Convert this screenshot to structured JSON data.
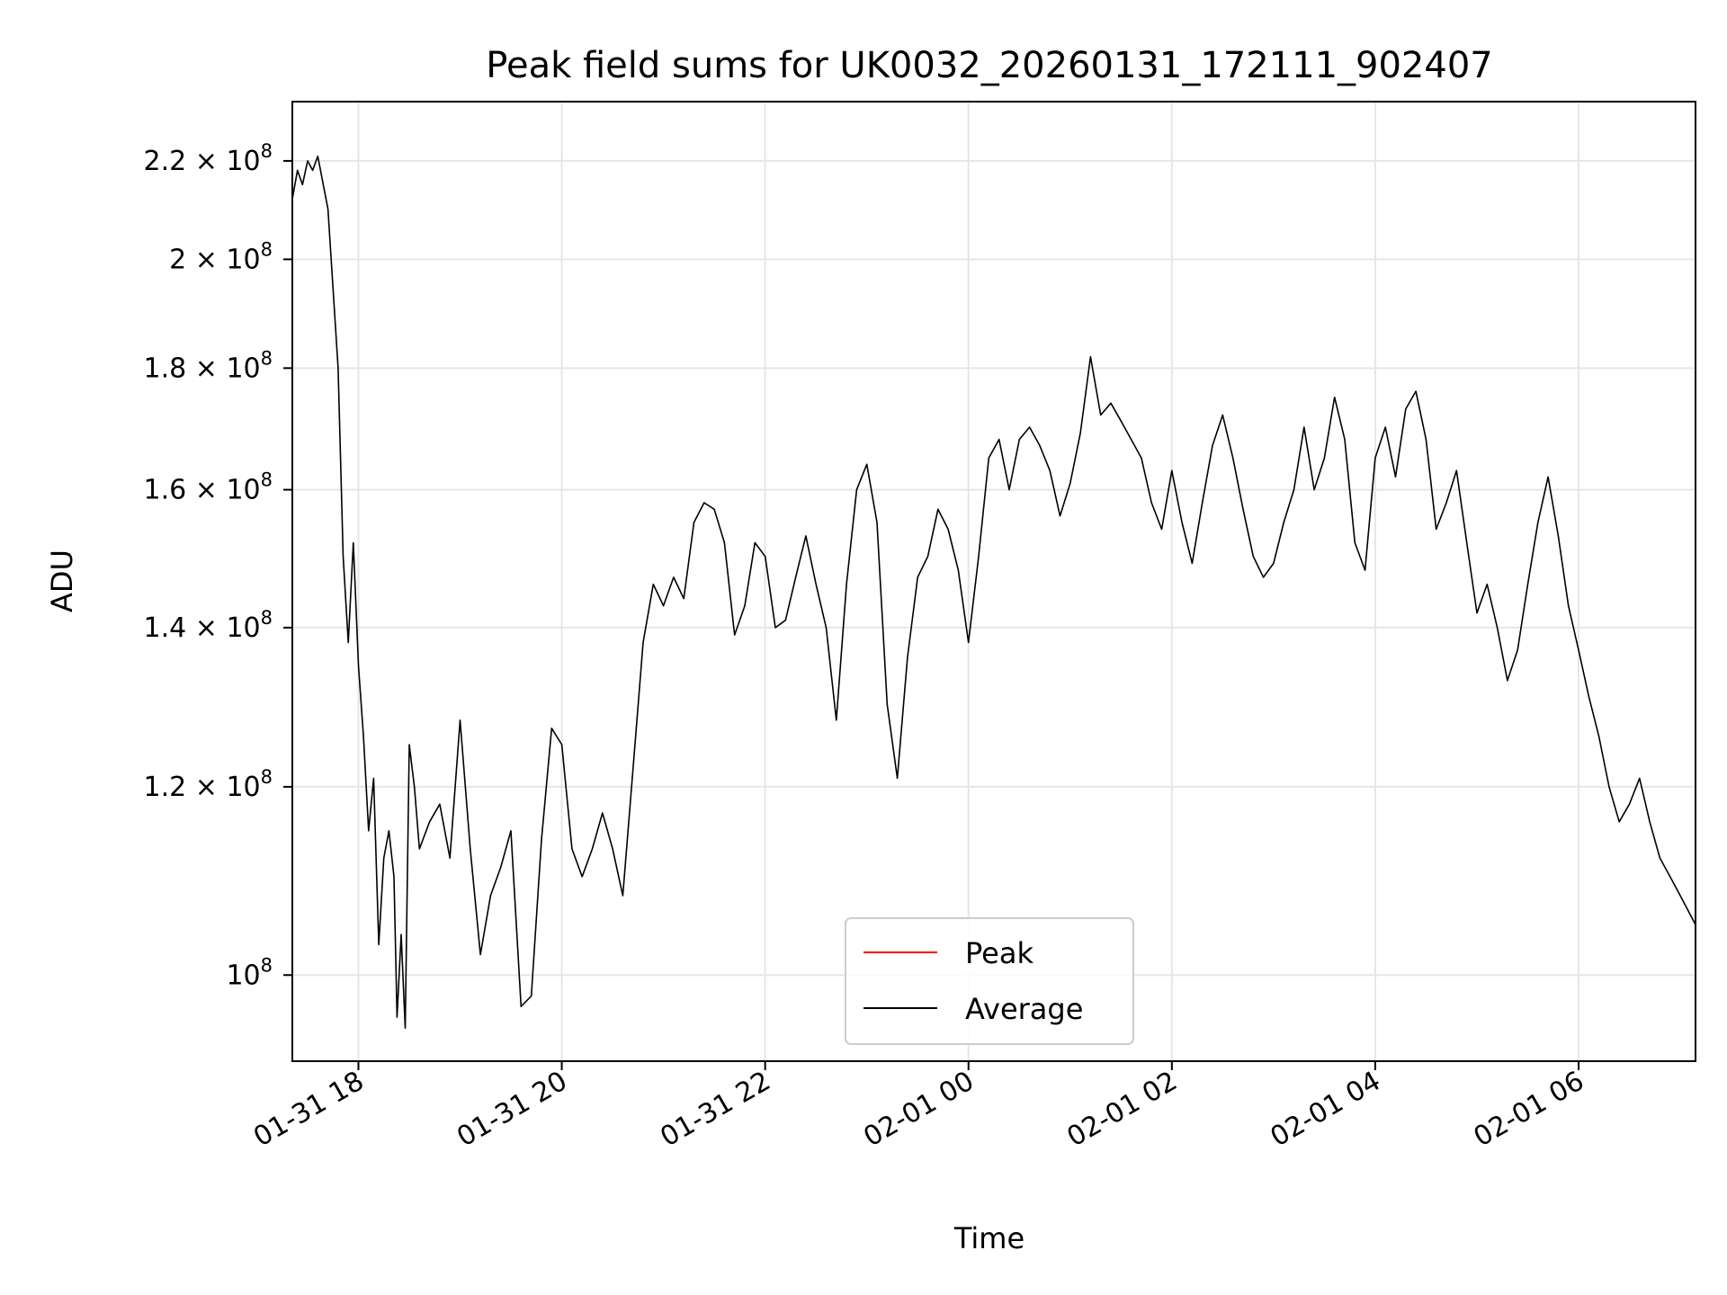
{
  "chart_data": {
    "type": "line",
    "title": "Peak field sums for UK0032_20260131_172111_902407",
    "xlabel": "Time",
    "ylabel": "ADU",
    "yscale": "log",
    "ylim": [
      92000000,
      233000000
    ],
    "xlim_hours": [
      17.35,
      31.15
    ],
    "grid": true,
    "x_ticks": [
      {
        "hours": 18,
        "label": "01-31 18"
      },
      {
        "hours": 20,
        "label": "01-31 20"
      },
      {
        "hours": 22,
        "label": "01-31 22"
      },
      {
        "hours": 24,
        "label": "02-01 00"
      },
      {
        "hours": 26,
        "label": "02-01 02"
      },
      {
        "hours": 28,
        "label": "02-01 04"
      },
      {
        "hours": 30,
        "label": "02-01 06"
      }
    ],
    "y_ticks": [
      {
        "value": 100000000,
        "mantissa": "",
        "exponent": "8"
      },
      {
        "value": 120000000,
        "mantissa": "1.2",
        "exponent": "8"
      },
      {
        "value": 140000000,
        "mantissa": "1.4",
        "exponent": "8"
      },
      {
        "value": 160000000,
        "mantissa": "1.6",
        "exponent": "8"
      },
      {
        "value": 180000000,
        "mantissa": "1.8",
        "exponent": "8"
      },
      {
        "value": 200000000,
        "mantissa": "2",
        "exponent": "8"
      },
      {
        "value": 220000000,
        "mantissa": "2.2",
        "exponent": "8"
      }
    ],
    "legend_position": "lower-center",
    "series": [
      {
        "name": "Average",
        "color": "#000000",
        "points": [
          [
            17.35,
            212
          ],
          [
            17.4,
            218
          ],
          [
            17.45,
            215
          ],
          [
            17.5,
            220
          ],
          [
            17.55,
            218
          ],
          [
            17.6,
            221
          ],
          [
            17.7,
            210
          ],
          [
            17.8,
            180
          ],
          [
            17.85,
            150
          ],
          [
            17.9,
            138
          ],
          [
            17.95,
            152
          ],
          [
            18.0,
            135
          ],
          [
            18.05,
            126
          ],
          [
            18.1,
            115
          ],
          [
            18.15,
            121
          ],
          [
            18.2,
            103
          ],
          [
            18.25,
            112
          ],
          [
            18.3,
            115
          ],
          [
            18.35,
            110
          ],
          [
            18.38,
            96
          ],
          [
            18.42,
            104
          ],
          [
            18.46,
            95
          ],
          [
            18.5,
            125
          ],
          [
            18.55,
            120
          ],
          [
            18.6,
            113
          ],
          [
            18.7,
            116
          ],
          [
            18.8,
            118
          ],
          [
            18.9,
            112
          ],
          [
            19.0,
            128
          ],
          [
            19.1,
            113
          ],
          [
            19.2,
            102
          ],
          [
            19.3,
            108
          ],
          [
            19.4,
            111
          ],
          [
            19.5,
            115
          ],
          [
            19.6,
            97
          ],
          [
            19.7,
            98
          ],
          [
            19.8,
            114
          ],
          [
            19.9,
            127
          ],
          [
            20.0,
            125
          ],
          [
            20.1,
            113
          ],
          [
            20.2,
            110
          ],
          [
            20.3,
            113
          ],
          [
            20.4,
            117
          ],
          [
            20.5,
            113
          ],
          [
            20.6,
            108
          ],
          [
            20.7,
            122
          ],
          [
            20.8,
            138
          ],
          [
            20.9,
            146
          ],
          [
            21.0,
            143
          ],
          [
            21.1,
            147
          ],
          [
            21.2,
            144
          ],
          [
            21.3,
            155
          ],
          [
            21.4,
            158
          ],
          [
            21.5,
            157
          ],
          [
            21.6,
            152
          ],
          [
            21.7,
            139
          ],
          [
            21.8,
            143
          ],
          [
            21.9,
            152
          ],
          [
            22.0,
            150
          ],
          [
            22.1,
            140
          ],
          [
            22.2,
            141
          ],
          [
            22.3,
            147
          ],
          [
            22.4,
            153
          ],
          [
            22.5,
            146
          ],
          [
            22.6,
            140
          ],
          [
            22.7,
            128
          ],
          [
            22.8,
            146
          ],
          [
            22.9,
            160
          ],
          [
            23.0,
            164
          ],
          [
            23.1,
            155
          ],
          [
            23.2,
            130
          ],
          [
            23.3,
            121
          ],
          [
            23.4,
            136
          ],
          [
            23.5,
            147
          ],
          [
            23.6,
            150
          ],
          [
            23.7,
            157
          ],
          [
            23.8,
            154
          ],
          [
            23.9,
            148
          ],
          [
            24.0,
            138
          ],
          [
            24.1,
            150
          ],
          [
            24.2,
            165
          ],
          [
            24.3,
            168
          ],
          [
            24.4,
            160
          ],
          [
            24.5,
            168
          ],
          [
            24.6,
            170
          ],
          [
            24.7,
            167
          ],
          [
            24.8,
            163
          ],
          [
            24.9,
            156
          ],
          [
            25.0,
            161
          ],
          [
            25.1,
            169
          ],
          [
            25.2,
            182
          ],
          [
            25.3,
            172
          ],
          [
            25.4,
            174
          ],
          [
            25.5,
            171
          ],
          [
            25.6,
            168
          ],
          [
            25.7,
            165
          ],
          [
            25.8,
            158
          ],
          [
            25.9,
            154
          ],
          [
            26.0,
            163
          ],
          [
            26.1,
            155
          ],
          [
            26.2,
            149
          ],
          [
            26.3,
            158
          ],
          [
            26.4,
            167
          ],
          [
            26.5,
            172
          ],
          [
            26.6,
            165
          ],
          [
            26.7,
            157
          ],
          [
            26.8,
            150
          ],
          [
            26.9,
            147
          ],
          [
            27.0,
            149
          ],
          [
            27.1,
            155
          ],
          [
            27.2,
            160
          ],
          [
            27.3,
            170
          ],
          [
            27.4,
            160
          ],
          [
            27.5,
            165
          ],
          [
            27.6,
            175
          ],
          [
            27.7,
            168
          ],
          [
            27.8,
            152
          ],
          [
            27.9,
            148
          ],
          [
            28.0,
            165
          ],
          [
            28.1,
            170
          ],
          [
            28.2,
            162
          ],
          [
            28.3,
            173
          ],
          [
            28.4,
            176
          ],
          [
            28.5,
            168
          ],
          [
            28.6,
            154
          ],
          [
            28.7,
            158
          ],
          [
            28.8,
            163
          ],
          [
            28.9,
            152
          ],
          [
            29.0,
            142
          ],
          [
            29.1,
            146
          ],
          [
            29.2,
            140
          ],
          [
            29.3,
            133
          ],
          [
            29.4,
            137
          ],
          [
            29.5,
            146
          ],
          [
            29.6,
            155
          ],
          [
            29.7,
            162
          ],
          [
            29.8,
            153
          ],
          [
            29.9,
            143
          ],
          [
            30.0,
            137
          ],
          [
            30.1,
            131
          ],
          [
            30.2,
            126
          ],
          [
            30.3,
            120
          ],
          [
            30.4,
            116
          ],
          [
            30.5,
            118
          ],
          [
            30.6,
            121
          ],
          [
            30.7,
            116
          ],
          [
            30.8,
            112
          ],
          [
            30.9,
            110
          ],
          [
            31.0,
            108
          ],
          [
            31.15,
            105
          ]
        ]
      }
    ]
  },
  "legend": {
    "entries": [
      {
        "label": "Peak",
        "color": "#ff0000"
      },
      {
        "label": "Average",
        "color": "#000000"
      }
    ]
  }
}
